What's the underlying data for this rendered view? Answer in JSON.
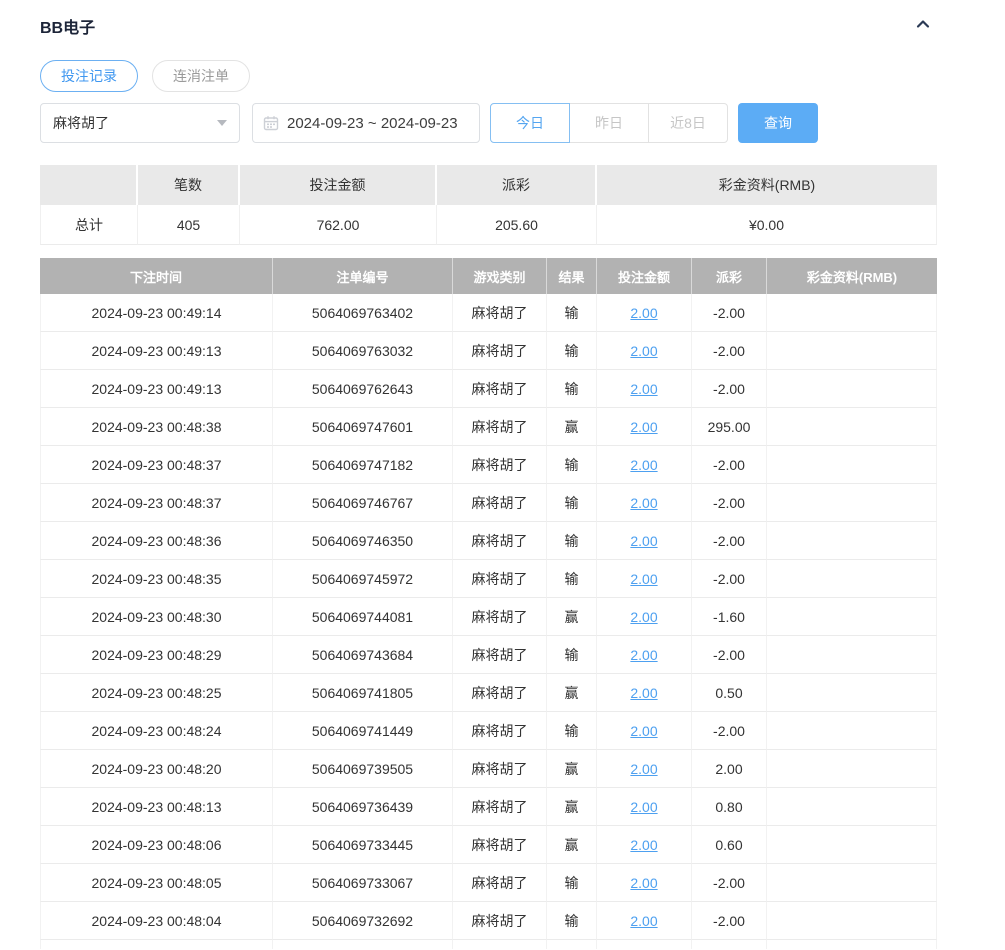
{
  "page": {
    "title": "BB电子"
  },
  "icons": {
    "collapse": "chevron-up",
    "calendar": "calendar",
    "select_caret": "caret-down"
  },
  "colors": {
    "accent_blue": "#4a9cf2",
    "button_blue": "#5cacf5",
    "link_blue": "#4da0f0",
    "negative_red": "#f05352",
    "table_header_gray": "#b2b2b2",
    "summary_header_gray": "#e9e9e9"
  },
  "tabs": [
    {
      "label": "投注记录",
      "active": true
    },
    {
      "label": "连消注单",
      "active": false
    }
  ],
  "filters": {
    "game_select": {
      "value": "麻将胡了"
    },
    "date_range": {
      "value": "2024-09-23 ~ 2024-09-23"
    },
    "quick_ranges": [
      {
        "label": "今日",
        "active": true
      },
      {
        "label": "昨日",
        "active": false
      },
      {
        "label": "近8日",
        "active": false
      }
    ],
    "search_label": "查询"
  },
  "summary": {
    "headers": [
      "",
      "笔数",
      "投注金额",
      "派彩",
      "彩金资料(RMB)"
    ],
    "row": {
      "label": "总计",
      "count": "405",
      "bet_amount": "762.00",
      "payout": "205.60",
      "jackpot": "¥0.00"
    }
  },
  "table": {
    "headers": [
      "下注时间",
      "注单编号",
      "游戏类别",
      "结果",
      "投注金额",
      "派彩",
      "彩金资料(RMB)"
    ],
    "rows": [
      {
        "time": "2024-09-23 00:49:14",
        "order_no": "5064069763402",
        "game": "麻将胡了",
        "result": "输",
        "bet": "2.00",
        "payout": "-2.00",
        "jackpot": ""
      },
      {
        "time": "2024-09-23 00:49:13",
        "order_no": "5064069763032",
        "game": "麻将胡了",
        "result": "输",
        "bet": "2.00",
        "payout": "-2.00",
        "jackpot": ""
      },
      {
        "time": "2024-09-23 00:49:13",
        "order_no": "5064069762643",
        "game": "麻将胡了",
        "result": "输",
        "bet": "2.00",
        "payout": "-2.00",
        "jackpot": ""
      },
      {
        "time": "2024-09-23 00:48:38",
        "order_no": "5064069747601",
        "game": "麻将胡了",
        "result": "赢",
        "bet": "2.00",
        "payout": "295.00",
        "jackpot": ""
      },
      {
        "time": "2024-09-23 00:48:37",
        "order_no": "5064069747182",
        "game": "麻将胡了",
        "result": "输",
        "bet": "2.00",
        "payout": "-2.00",
        "jackpot": ""
      },
      {
        "time": "2024-09-23 00:48:37",
        "order_no": "5064069746767",
        "game": "麻将胡了",
        "result": "输",
        "bet": "2.00",
        "payout": "-2.00",
        "jackpot": ""
      },
      {
        "time": "2024-09-23 00:48:36",
        "order_no": "5064069746350",
        "game": "麻将胡了",
        "result": "输",
        "bet": "2.00",
        "payout": "-2.00",
        "jackpot": ""
      },
      {
        "time": "2024-09-23 00:48:35",
        "order_no": "5064069745972",
        "game": "麻将胡了",
        "result": "输",
        "bet": "2.00",
        "payout": "-2.00",
        "jackpot": ""
      },
      {
        "time": "2024-09-23 00:48:30",
        "order_no": "5064069744081",
        "game": "麻将胡了",
        "result": "赢",
        "bet": "2.00",
        "payout": "-1.60",
        "jackpot": ""
      },
      {
        "time": "2024-09-23 00:48:29",
        "order_no": "5064069743684",
        "game": "麻将胡了",
        "result": "输",
        "bet": "2.00",
        "payout": "-2.00",
        "jackpot": ""
      },
      {
        "time": "2024-09-23 00:48:25",
        "order_no": "5064069741805",
        "game": "麻将胡了",
        "result": "赢",
        "bet": "2.00",
        "payout": "0.50",
        "jackpot": ""
      },
      {
        "time": "2024-09-23 00:48:24",
        "order_no": "5064069741449",
        "game": "麻将胡了",
        "result": "输",
        "bet": "2.00",
        "payout": "-2.00",
        "jackpot": ""
      },
      {
        "time": "2024-09-23 00:48:20",
        "order_no": "5064069739505",
        "game": "麻将胡了",
        "result": "赢",
        "bet": "2.00",
        "payout": "2.00",
        "jackpot": ""
      },
      {
        "time": "2024-09-23 00:48:13",
        "order_no": "5064069736439",
        "game": "麻将胡了",
        "result": "赢",
        "bet": "2.00",
        "payout": "0.80",
        "jackpot": ""
      },
      {
        "time": "2024-09-23 00:48:06",
        "order_no": "5064069733445",
        "game": "麻将胡了",
        "result": "赢",
        "bet": "2.00",
        "payout": "0.60",
        "jackpot": ""
      },
      {
        "time": "2024-09-23 00:48:05",
        "order_no": "5064069733067",
        "game": "麻将胡了",
        "result": "输",
        "bet": "2.00",
        "payout": "-2.00",
        "jackpot": ""
      },
      {
        "time": "2024-09-23 00:48:04",
        "order_no": "5064069732692",
        "game": "麻将胡了",
        "result": "输",
        "bet": "2.00",
        "payout": "-2.00",
        "jackpot": ""
      }
    ]
  }
}
